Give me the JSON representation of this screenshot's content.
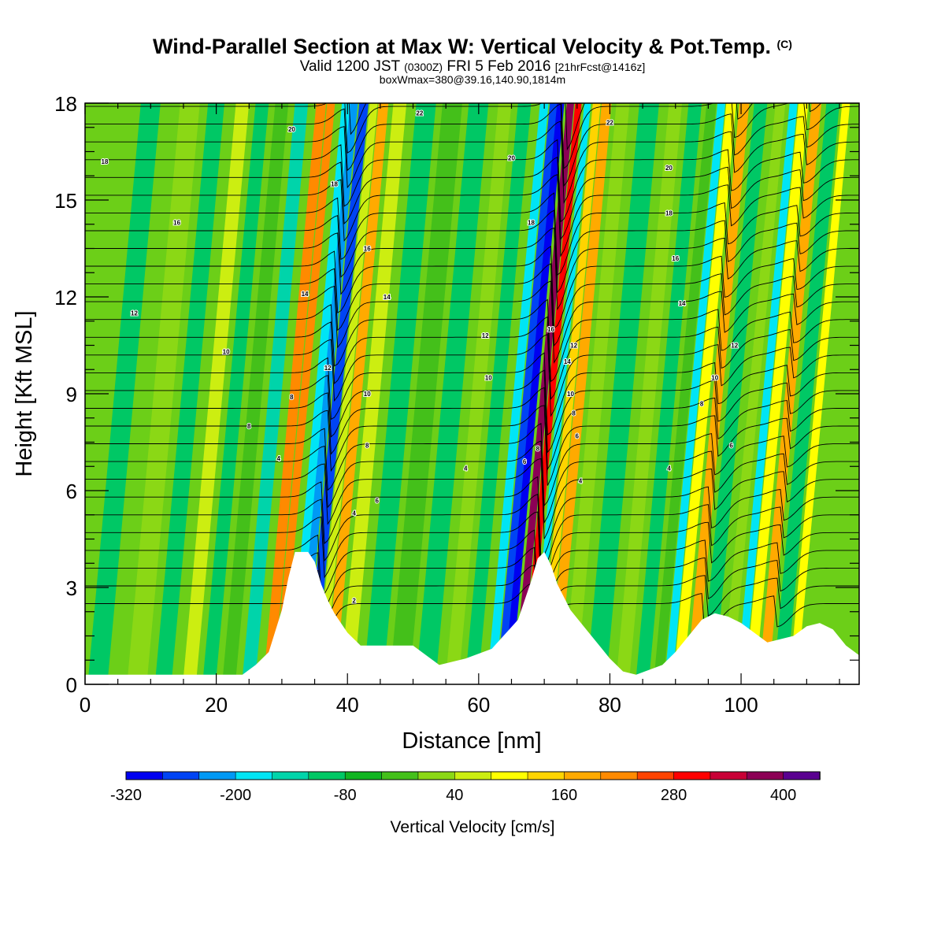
{
  "titles": {
    "main": "Wind-Parallel Section at Max W: Vertical Velocity & Pot.Temp.",
    "copyright": "(C)",
    "valid_prefix": "Valid 1200 JST",
    "valid_utc": "(0300Z)",
    "valid_date": "FRI 5 Feb 2016",
    "valid_fcst": "[21hrFcst@1416z]",
    "box": "boxWmax=380@39.16,140.90,1814m"
  },
  "chart_data": {
    "type": "heatmap",
    "xlabel": "Distance [nm]",
    "ylabel": "Height [Kft MSL]",
    "xlim": [
      0,
      118
    ],
    "ylim": [
      0,
      18
    ],
    "x_ticks": [
      0,
      20,
      40,
      60,
      80,
      100
    ],
    "y_ticks": [
      0,
      3,
      6,
      9,
      12,
      15,
      18
    ],
    "colorbar": {
      "title": "Vertical Velocity [cm/s]",
      "tick_labels": [
        "-320",
        "-200",
        "-80",
        "40",
        "160",
        "280",
        "400"
      ],
      "colors": [
        "#0000f0",
        "#0044f4",
        "#0099f5",
        "#00e5f5",
        "#00d4aa",
        "#00c865",
        "#11b522",
        "#44c01a",
        "#8bd815",
        "#ccee11",
        "#ffff00",
        "#ffd400",
        "#ffaa00",
        "#ff8a00",
        "#ff4400",
        "#ff0000",
        "#c80036",
        "#8c0055",
        "#5a0090"
      ]
    },
    "terrain_kft": [
      [
        0,
        0.3
      ],
      [
        6,
        0.3
      ],
      [
        10,
        0.3
      ],
      [
        24,
        0.3
      ],
      [
        26,
        0.6
      ],
      [
        28,
        1.0
      ],
      [
        30,
        2.3
      ],
      [
        31,
        3.3
      ],
      [
        32,
        4.1
      ],
      [
        34,
        4.1
      ],
      [
        35,
        3.8
      ],
      [
        36,
        3.1
      ],
      [
        37,
        2.6
      ],
      [
        38,
        2.2
      ],
      [
        39,
        1.9
      ],
      [
        40,
        1.6
      ],
      [
        41,
        1.4
      ],
      [
        42,
        1.2
      ],
      [
        50,
        1.2
      ],
      [
        52,
        0.9
      ],
      [
        54,
        0.6
      ],
      [
        58,
        0.8
      ],
      [
        62,
        1.1
      ],
      [
        66,
        2.0
      ],
      [
        68,
        3.2
      ],
      [
        69,
        3.9
      ],
      [
        70,
        4.1
      ],
      [
        71,
        3.7
      ],
      [
        72,
        3.1
      ],
      [
        73,
        2.7
      ],
      [
        74,
        2.3
      ],
      [
        76,
        1.8
      ],
      [
        78,
        1.3
      ],
      [
        80,
        0.8
      ],
      [
        82,
        0.4
      ],
      [
        84,
        0.3
      ],
      [
        88,
        0.6
      ],
      [
        90,
        1.0
      ],
      [
        92,
        1.5
      ],
      [
        94,
        2.0
      ],
      [
        96,
        2.2
      ],
      [
        98,
        2.1
      ],
      [
        100,
        1.9
      ],
      [
        102,
        1.6
      ],
      [
        104,
        1.3
      ],
      [
        108,
        1.5
      ],
      [
        110,
        1.8
      ],
      [
        112,
        1.9
      ],
      [
        114,
        1.7
      ],
      [
        116,
        1.2
      ],
      [
        118,
        0.9
      ]
    ],
    "theta_labels": [
      {
        "x": 3,
        "y": 16.2,
        "text": "18"
      },
      {
        "x": 14,
        "y": 14.3,
        "text": "16"
      },
      {
        "x": 7.5,
        "y": 11.5,
        "text": "12"
      },
      {
        "x": 21.5,
        "y": 10.3,
        "text": "10"
      },
      {
        "x": 31.5,
        "y": 8.9,
        "text": "8"
      },
      {
        "x": 25,
        "y": 8.0,
        "text": "8"
      },
      {
        "x": 29.5,
        "y": 7.0,
        "text": "4"
      },
      {
        "x": 31.5,
        "y": 17.2,
        "text": "20"
      },
      {
        "x": 51,
        "y": 17.7,
        "text": "22"
      },
      {
        "x": 65,
        "y": 16.3,
        "text": "20"
      },
      {
        "x": 80,
        "y": 17.4,
        "text": "22"
      },
      {
        "x": 89,
        "y": 16.0,
        "text": "20"
      },
      {
        "x": 89,
        "y": 14.6,
        "text": "18"
      },
      {
        "x": 90,
        "y": 13.2,
        "text": "16"
      },
      {
        "x": 91,
        "y": 11.8,
        "text": "14"
      },
      {
        "x": 99,
        "y": 10.5,
        "text": "12"
      },
      {
        "x": 96,
        "y": 9.5,
        "text": "10"
      },
      {
        "x": 94,
        "y": 8.7,
        "text": "8"
      },
      {
        "x": 98.5,
        "y": 7.4,
        "text": "6"
      },
      {
        "x": 89,
        "y": 6.7,
        "text": "4"
      },
      {
        "x": 38,
        "y": 15.5,
        "text": "18"
      },
      {
        "x": 43,
        "y": 13.5,
        "text": "16"
      },
      {
        "x": 46,
        "y": 12.0,
        "text": "14"
      },
      {
        "x": 33.5,
        "y": 12.1,
        "text": "14"
      },
      {
        "x": 37,
        "y": 9.8,
        "text": "12"
      },
      {
        "x": 43,
        "y": 9.0,
        "text": "10"
      },
      {
        "x": 43,
        "y": 7.4,
        "text": "8"
      },
      {
        "x": 44.5,
        "y": 5.7,
        "text": "6"
      },
      {
        "x": 41,
        "y": 5.3,
        "text": "4"
      },
      {
        "x": 41,
        "y": 2.6,
        "text": "2"
      },
      {
        "x": 68,
        "y": 14.3,
        "text": "18"
      },
      {
        "x": 71,
        "y": 11.0,
        "text": "16"
      },
      {
        "x": 74.5,
        "y": 10.5,
        "text": "12"
      },
      {
        "x": 73.5,
        "y": 10.0,
        "text": "14"
      },
      {
        "x": 61,
        "y": 10.8,
        "text": "12"
      },
      {
        "x": 61.5,
        "y": 9.5,
        "text": "10"
      },
      {
        "x": 74,
        "y": 9.0,
        "text": "10"
      },
      {
        "x": 74.5,
        "y": 8.4,
        "text": "8"
      },
      {
        "x": 75,
        "y": 7.7,
        "text": "6"
      },
      {
        "x": 75.5,
        "y": 6.3,
        "text": "4"
      },
      {
        "x": 69,
        "y": 7.3,
        "text": "8"
      },
      {
        "x": 67,
        "y": 6.9,
        "text": "6"
      },
      {
        "x": 58,
        "y": 6.7,
        "text": "4"
      }
    ]
  }
}
